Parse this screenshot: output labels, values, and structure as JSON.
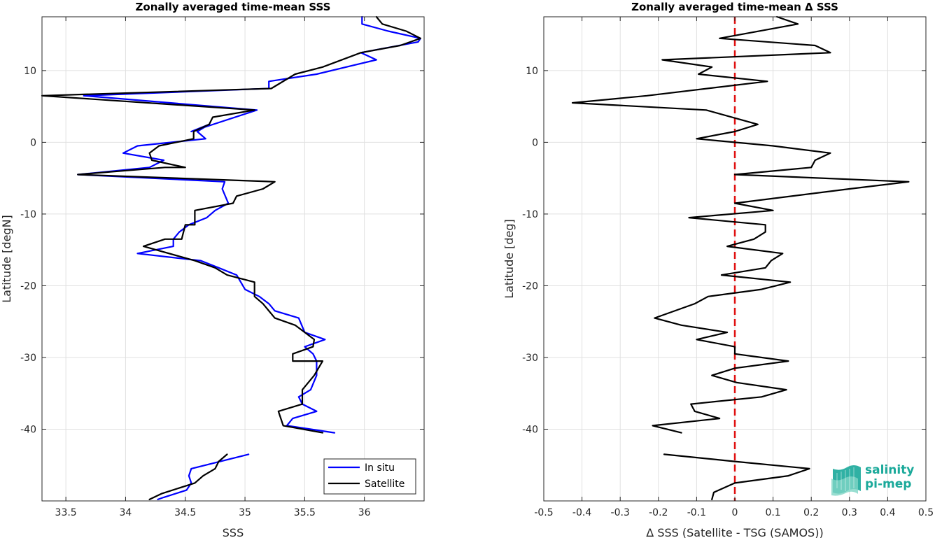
{
  "colors": {
    "insitu": "#0000ff",
    "satellite": "#000000",
    "zero_line": "#e01010",
    "grid": "#e0e0e0",
    "logo": "#1aa99a"
  },
  "logo": {
    "line1": "salinity",
    "line2": "pi-mep"
  },
  "chart_data": [
    {
      "type": "line",
      "title": "Zonally averaged time-mean SSS",
      "xlabel": "SSS",
      "ylabel": "Latitude [degN]",
      "xlim": [
        33.3,
        36.5
      ],
      "ylim": [
        -50,
        17.5
      ],
      "xticks": [
        33.5,
        34,
        34.5,
        35,
        35.5,
        36
      ],
      "xtick_labels": [
        "33.5",
        "34",
        "34.5",
        "35",
        "35.5",
        "36"
      ],
      "yticks": [
        -40,
        -30,
        -20,
        -10,
        0,
        10
      ],
      "ytick_labels": [
        "-40",
        "-30",
        "-20",
        "-10",
        "0",
        "10"
      ],
      "grid": true,
      "legend_position": "bottom-right",
      "series": [
        {
          "name": "In situ",
          "color": "#0000ff",
          "segments": [
            {
              "x": [
                35.98,
                35.98,
                36.2,
                36.47,
                36.45,
                35.97,
                36.1,
                35.6,
                35.2,
                35.2,
                33.65,
                35.1,
                34.55,
                34.7,
                34.6,
                34.67,
                34.1,
                33.98,
                34.32,
                34.2,
                33.6,
                34.83,
                34.81,
                34.86,
                34.75,
                34.68,
                34.53,
                34.45,
                34.4,
                34.4,
                34.1,
                34.63,
                34.78,
                34.93,
                35.0,
                35.12,
                35.2,
                35.25,
                35.45,
                35.5,
                35.67,
                35.5,
                35.57,
                35.6,
                35.6,
                35.55,
                35.45,
                35.48,
                35.6,
                35.4,
                35.35,
                35.75
              ],
              "y": [
                17.5,
                16.5,
                15.5,
                14.5,
                14.0,
                12.5,
                11.5,
                9.5,
                8.5,
                7.5,
                6.5,
                4.5,
                1.5,
                2.5,
                1.5,
                0.5,
                -0.5,
                -1.5,
                -2.5,
                -3.5,
                -4.5,
                -5.5,
                -6.5,
                -8.5,
                -9.5,
                -10.5,
                -11.5,
                -12.5,
                -13.5,
                -14.5,
                -15.5,
                -16.5,
                -17.5,
                -18.5,
                -20.5,
                -21.5,
                -22.5,
                -23.5,
                -24.5,
                -26.5,
                -27.5,
                -28.5,
                -29.5,
                -30.5,
                -32.5,
                -34.5,
                -35.5,
                -36.5,
                -37.5,
                -38.5,
                -39.5,
                -40.5
              ]
            },
            {
              "x": [
                35.03,
                34.55,
                34.53,
                34.55,
                34.51,
                34.32,
                34.27
              ],
              "y": [
                -43.5,
                -45.5,
                -46.5,
                -47.5,
                -48.5,
                -49.5,
                -49.8
              ]
            }
          ]
        },
        {
          "name": "Satellite",
          "color": "#000000",
          "segments": [
            {
              "x": [
                36.1,
                36.15,
                36.35,
                36.47,
                36.3,
                35.97,
                35.65,
                35.42,
                35.22,
                33.3,
                35.08,
                34.73,
                34.7,
                34.57,
                34.57,
                34.28,
                34.2,
                34.22,
                34.5,
                34.33,
                33.6,
                35.25,
                35.15,
                34.93,
                34.9,
                34.58,
                34.58,
                34.5,
                34.47,
                34.33,
                34.15,
                34.58,
                34.75,
                34.85,
                35.08,
                35.08,
                35.15,
                35.25,
                35.42,
                35.58,
                35.57,
                35.4,
                35.4,
                35.65,
                35.58,
                35.48,
                35.48,
                35.28,
                35.32,
                35.65
              ],
              "y": [
                17.5,
                16.5,
                15.5,
                14.5,
                13.5,
                12.5,
                10.5,
                9.5,
                7.5,
                6.5,
                4.5,
                3.5,
                2.5,
                1.5,
                0.5,
                -0.5,
                -1.5,
                -2.5,
                -3.5,
                -3.5,
                -4.5,
                -5.5,
                -6.5,
                -7.5,
                -8.5,
                -9.5,
                -11.5,
                -11.5,
                -13.5,
                -13.5,
                -14.5,
                -16.5,
                -17.5,
                -18.5,
                -19.5,
                -21.5,
                -22.5,
                -24.5,
                -25.5,
                -27.5,
                -28.5,
                -29.5,
                -30.5,
                -30.5,
                -32.5,
                -34.5,
                -36.5,
                -37.5,
                -39.5,
                -40.5
              ]
            },
            {
              "x": [
                34.85,
                34.78,
                34.75,
                34.65,
                34.58,
                34.3,
                34.2
              ],
              "y": [
                -43.5,
                -44.5,
                -45.5,
                -46.5,
                -47.5,
                -49.0,
                -49.8
              ]
            }
          ]
        }
      ]
    },
    {
      "type": "line",
      "title": "Zonally averaged time-mean Δ SSS",
      "xlabel": "Δ SSS (Satellite - TSG (SAMOS))",
      "ylabel": "Latitude [deg]",
      "xlim": [
        -0.5,
        0.5
      ],
      "ylim": [
        -50,
        17.5
      ],
      "xticks": [
        -0.5,
        -0.4,
        -0.3,
        -0.2,
        -0.1,
        0,
        0.1,
        0.2,
        0.3,
        0.4,
        0.5
      ],
      "xtick_labels": [
        "-0.5",
        "-0.4",
        "-0.3",
        "-0.2",
        "-0.1",
        "0",
        "0.1",
        "0.2",
        "0.3",
        "0.4",
        "0.5"
      ],
      "yticks": [
        -40,
        -30,
        -20,
        -10,
        0,
        10
      ],
      "ytick_labels": [
        "-40",
        "-30",
        "-20",
        "-10",
        "0",
        "10"
      ],
      "grid": true,
      "zero_line": true,
      "series": [
        {
          "color": "#000000",
          "segments": [
            {
              "x": [
                0.11,
                0.165,
                -0.04,
                0.21,
                0.25,
                -0.19,
                -0.06,
                -0.095,
                0.085,
                -0.23,
                -0.425,
                -0.075,
                0.06,
                0.0,
                -0.1,
                0.1,
                0.25,
                0.21,
                0.2,
                0.0,
                0.455,
                0.3,
                0.0,
                0.1,
                -0.12,
                0.08,
                0.08,
                0.05,
                -0.02,
                0.125,
                0.095,
                0.08,
                -0.035,
                0.145,
                0.07,
                -0.07,
                -0.105,
                -0.21,
                -0.14,
                -0.02,
                -0.1,
                0.0,
                0.0,
                0.14,
                0.0,
                -0.06,
                0.005,
                0.135,
                0.07,
                -0.115,
                -0.105,
                -0.04,
                -0.215,
                -0.14
              ],
              "y": [
                17.5,
                16.5,
                14.5,
                13.5,
                12.5,
                11.5,
                10.5,
                9.5,
                8.5,
                6.5,
                5.5,
                4.5,
                2.5,
                1.5,
                0.5,
                -0.5,
                -1.5,
                -2.5,
                -3.5,
                -4.5,
                -5.5,
                -6.5,
                -8.5,
                -9.5,
                -10.5,
                -11.5,
                -12.5,
                -13.5,
                -14.5,
                -15.5,
                -16.5,
                -17.5,
                -18.5,
                -19.5,
                -20.5,
                -21.5,
                -22.5,
                -24.5,
                -25.5,
                -26.5,
                -27.5,
                -28.5,
                -29.5,
                -30.5,
                -31.5,
                -32.5,
                -33.5,
                -34.5,
                -35.5,
                -36.5,
                -37.5,
                -38.5,
                -39.5,
                -40.5
              ]
            },
            {
              "x": [
                -0.185,
                0.0,
                0.195,
                0.14,
                0.0,
                -0.055,
                -0.06
              ],
              "y": [
                -43.5,
                -44.5,
                -45.5,
                -46.5,
                -47.5,
                -48.8,
                -49.8
              ]
            }
          ]
        }
      ]
    }
  ]
}
